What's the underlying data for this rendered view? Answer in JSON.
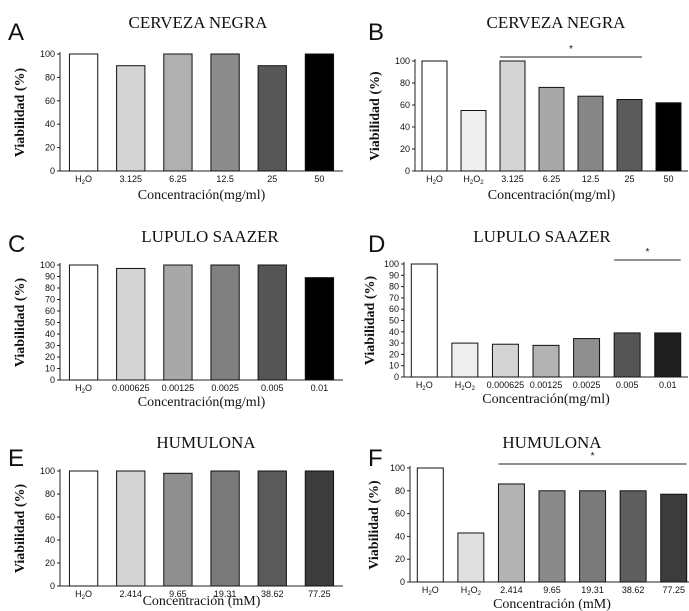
{
  "chart_data": [
    {
      "panel": "A",
      "type": "bar",
      "title": "CERVEZA NEGRA",
      "ylabel": "Viabilidad (%)",
      "xlabel": "Concentración(mg/ml)",
      "ylim": [
        0,
        100
      ],
      "yticks": [
        "0",
        "20",
        "40",
        "60",
        "80",
        "100"
      ],
      "categories": [
        "H2O",
        "3.125",
        "6.25",
        "12.5",
        "25",
        "50"
      ],
      "values": [
        100,
        90,
        100,
        100,
        90,
        100
      ],
      "colors": [
        "#ffffff",
        "#d4d4d4",
        "#b0b0b0",
        "#8c8c8c",
        "#575757",
        "#000000"
      ],
      "significance": null
    },
    {
      "panel": "B",
      "type": "bar",
      "title": "CERVEZA NEGRA",
      "ylabel": "Viabilidad (%)",
      "xlabel": "Concentración(mg/ml)",
      "ylim": [
        0,
        100
      ],
      "yticks": [
        "0",
        "20",
        "40",
        "60",
        "80",
        "100"
      ],
      "categories": [
        "H2O",
        "H2O2",
        "3.125",
        "6.25",
        "12.5",
        "25",
        "50"
      ],
      "values": [
        100,
        55,
        100,
        76,
        68,
        65,
        62
      ],
      "colors": [
        "#ffffff",
        "#efefef",
        "#d4d4d4",
        "#a8a8a8",
        "#868686",
        "#5a5a5a",
        "#000000"
      ],
      "significance": {
        "from": 2,
        "to": 5,
        "mark": "*"
      }
    },
    {
      "panel": "C",
      "type": "bar",
      "title": "LUPULO SAAZER",
      "ylabel": "Viabilidad (%)",
      "xlabel": "Concentración(mg/ml)",
      "ylim": [
        0,
        100
      ],
      "yticks": [
        "0",
        "10",
        "20",
        "30",
        "40",
        "50",
        "60",
        "70",
        "80",
        "90",
        "100"
      ],
      "categories": [
        "H2O",
        "0.000625",
        "0.00125",
        "0.0025",
        "0.005",
        "0.01"
      ],
      "values": [
        100,
        97,
        100,
        100,
        100,
        89
      ],
      "colors": [
        "#ffffff",
        "#d4d4d4",
        "#a8a8a8",
        "#808080",
        "#555555",
        "#000000"
      ],
      "significance": null
    },
    {
      "panel": "D",
      "type": "bar",
      "title": "LUPULO SAAZER",
      "ylabel": "Viabilidad (%)",
      "xlabel": "Concentración(mg/ml)",
      "ylim": [
        0,
        100
      ],
      "yticks": [
        "0",
        "10",
        "20",
        "30",
        "40",
        "50",
        "60",
        "70",
        "80",
        "90",
        "100"
      ],
      "categories": [
        "H2O",
        "H2O2",
        "0.000625",
        "0.00125",
        "0.0025",
        "0.005",
        "0.01"
      ],
      "values": [
        100,
        30,
        29,
        28,
        34,
        39,
        39
      ],
      "colors": [
        "#ffffff",
        "#efefef",
        "#d4d4d4",
        "#b3b3b3",
        "#8f8f8f",
        "#555555",
        "#1e1e1e"
      ],
      "significance": {
        "from": 5,
        "to": 6,
        "mark": "*"
      }
    },
    {
      "panel": "E",
      "type": "bar",
      "title": "HUMULONA",
      "ylabel": "Viabilidad (%)",
      "xlabel": "Concentración (mM)",
      "ylim": [
        0,
        100
      ],
      "yticks": [
        "0",
        "20",
        "40",
        "60",
        "80",
        "100"
      ],
      "categories": [
        "H2O",
        "2.414",
        "9.65",
        "19.31",
        "38.62",
        "77.25"
      ],
      "values": [
        100,
        100,
        98,
        100,
        100,
        100
      ],
      "colors": [
        "#ffffff",
        "#d4d4d4",
        "#8f8f8f",
        "#7a7a7a",
        "#5a5a5a",
        "#3c3c3c"
      ],
      "significance": null
    },
    {
      "panel": "F",
      "type": "bar",
      "title": "HUMULONA",
      "ylabel": "Viabilidad (%)",
      "xlabel": "Concentración (mM)",
      "ylim": [
        0,
        100
      ],
      "yticks": [
        "0",
        "20",
        "40",
        "60",
        "80",
        "100"
      ],
      "categories": [
        "H2O",
        "H2O2",
        "2.414",
        "9.65",
        "19.31",
        "38.62",
        "77.25"
      ],
      "values": [
        100,
        43,
        86,
        80,
        80,
        80,
        77
      ],
      "colors": [
        "#ffffff",
        "#e0e0e0",
        "#b3b3b3",
        "#8a8a8a",
        "#7a7a7a",
        "#5e5e5e",
        "#3c3c3c"
      ],
      "significance": {
        "from": 2,
        "to": 6,
        "mark": "*"
      }
    }
  ]
}
